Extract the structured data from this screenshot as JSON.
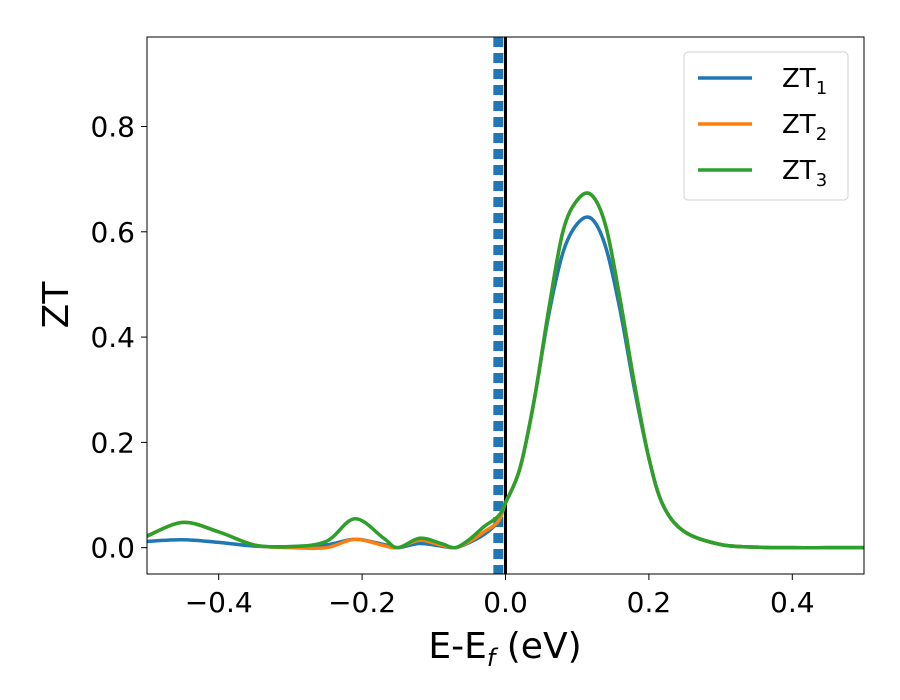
{
  "chart_data": {
    "type": "line",
    "xlabel_main": "E-E",
    "xlabel_sub": "f",
    "xlabel_tail": " (eV)",
    "ylabel": "ZT",
    "xlim": [
      -0.5,
      0.5
    ],
    "ylim": [
      -0.05,
      0.97
    ],
    "x_ticks": [
      -0.4,
      -0.2,
      0.0,
      0.2,
      0.4
    ],
    "x_tick_labels": [
      "−0.4",
      "−0.2",
      "0.0",
      "0.2",
      "0.4"
    ],
    "y_ticks": [
      0.0,
      0.2,
      0.4,
      0.6,
      0.8
    ],
    "y_tick_labels": [
      "0.0",
      "0.2",
      "0.4",
      "0.6",
      "0.8"
    ],
    "legend_position": "top-right",
    "vertical_lines": [
      {
        "x": -0.01,
        "style": "dashed",
        "color": "#1f77b4"
      },
      {
        "x": 0.0,
        "style": "solid",
        "color": "#000000"
      }
    ],
    "series": [
      {
        "name": "ZT",
        "name_sub": "1",
        "color": "#1f77b4",
        "x": [
          -0.5,
          -0.45,
          -0.4,
          -0.35,
          -0.3,
          -0.25,
          -0.21,
          -0.17,
          -0.15,
          -0.12,
          -0.09,
          -0.07,
          -0.05,
          -0.03,
          -0.01,
          0.0,
          0.02,
          0.04,
          0.06,
          0.08,
          0.1,
          0.12,
          0.14,
          0.16,
          0.18,
          0.2,
          0.22,
          0.25,
          0.3,
          0.35,
          0.4,
          0.45,
          0.5
        ],
        "y": [
          0.012,
          0.015,
          0.01,
          0.003,
          0.002,
          0.005,
          0.016,
          0.006,
          0.0,
          0.008,
          0.003,
          0.0,
          0.01,
          0.025,
          0.05,
          0.085,
          0.15,
          0.28,
          0.44,
          0.56,
          0.615,
          0.625,
          0.57,
          0.45,
          0.3,
          0.17,
          0.08,
          0.03,
          0.006,
          0.001,
          0.0,
          0.0,
          0.0
        ]
      },
      {
        "name": "ZT",
        "name_sub": "2",
        "color": "#ff7f0e",
        "x": [
          -0.5,
          -0.45,
          -0.4,
          -0.35,
          -0.3,
          -0.25,
          -0.21,
          -0.17,
          -0.15,
          -0.12,
          -0.09,
          -0.07,
          -0.05,
          -0.03,
          -0.01,
          0.0,
          0.02,
          0.04,
          0.06,
          0.08,
          0.1,
          0.12,
          0.14,
          0.16,
          0.18,
          0.2,
          0.22,
          0.25,
          0.3,
          0.35,
          0.4,
          0.45,
          0.5
        ],
        "y": [
          0.022,
          0.048,
          0.03,
          0.005,
          0.0,
          0.0,
          0.016,
          0.004,
          0.0,
          0.014,
          0.005,
          0.0,
          0.012,
          0.03,
          0.05,
          0.085,
          0.15,
          0.28,
          0.45,
          0.6,
          0.66,
          0.67,
          0.61,
          0.47,
          0.31,
          0.17,
          0.08,
          0.03,
          0.006,
          0.001,
          0.0,
          0.0,
          0.0
        ]
      },
      {
        "name": "ZT",
        "name_sub": "3",
        "color": "#2ca02c",
        "x": [
          -0.5,
          -0.45,
          -0.4,
          -0.35,
          -0.3,
          -0.25,
          -0.21,
          -0.17,
          -0.15,
          -0.12,
          -0.09,
          -0.07,
          -0.05,
          -0.03,
          -0.01,
          0.0,
          0.02,
          0.04,
          0.06,
          0.08,
          0.1,
          0.12,
          0.14,
          0.16,
          0.18,
          0.2,
          0.22,
          0.25,
          0.3,
          0.35,
          0.4,
          0.45,
          0.5
        ],
        "y": [
          0.022,
          0.048,
          0.03,
          0.005,
          0.002,
          0.012,
          0.055,
          0.018,
          0.0,
          0.018,
          0.008,
          0.0,
          0.016,
          0.04,
          0.06,
          0.085,
          0.15,
          0.28,
          0.45,
          0.6,
          0.66,
          0.67,
          0.61,
          0.47,
          0.31,
          0.17,
          0.08,
          0.03,
          0.006,
          0.001,
          0.0,
          0.0,
          0.0
        ]
      }
    ]
  }
}
